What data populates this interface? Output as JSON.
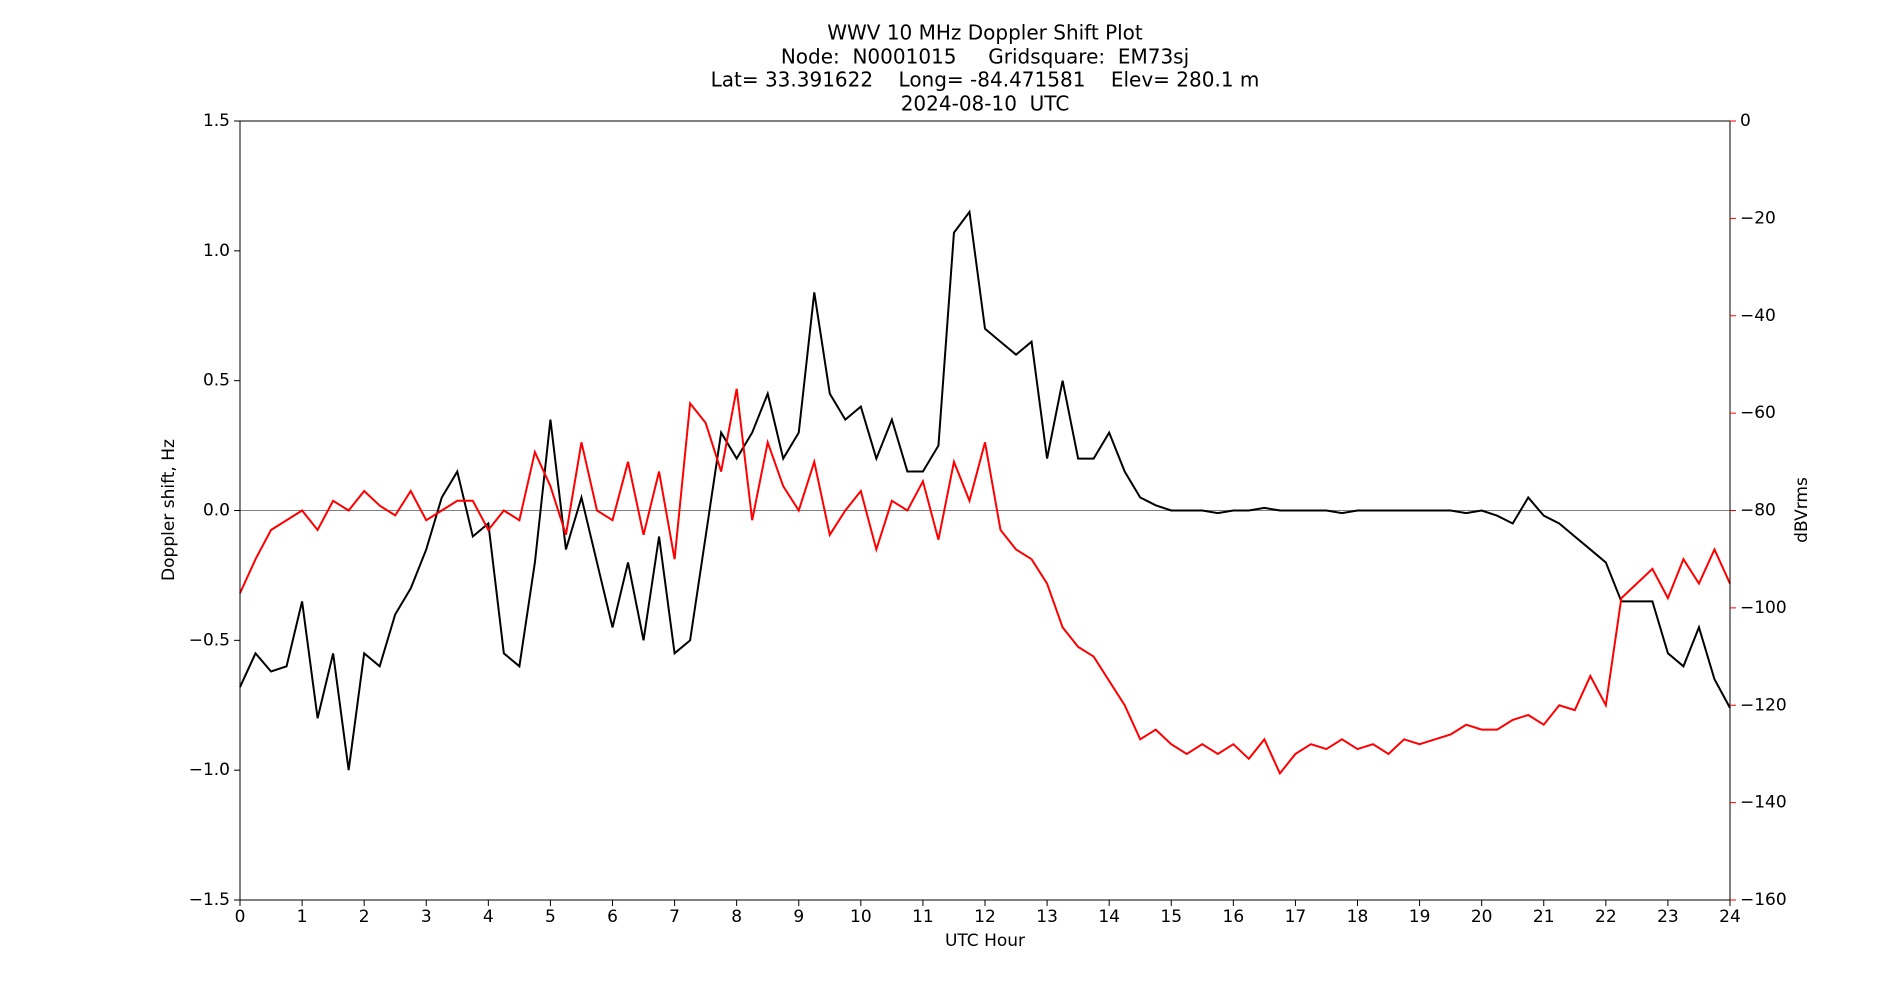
{
  "chart_data": {
    "type": "line",
    "title": "WWV 10 MHz Doppler Shift Plot",
    "subtitle": [
      "Node:  N0001015     Gridsquare:  EM73sj",
      "Lat= 33.391622    Long= -84.471581    Elev= 280.1 m",
      "2024-08-10  UTC"
    ],
    "xlabel": "UTC Hour",
    "ylabel": "Doppler shift, Hz",
    "y2label": "dBVrms",
    "zero_line": true,
    "x": [
      0,
      0.25,
      0.5,
      0.75,
      1,
      1.25,
      1.5,
      1.75,
      2,
      2.25,
      2.5,
      2.75,
      3,
      3.25,
      3.5,
      3.75,
      4,
      4.25,
      4.5,
      4.75,
      5,
      5.25,
      5.5,
      5.75,
      6,
      6.25,
      6.5,
      6.75,
      7,
      7.25,
      7.5,
      7.75,
      8,
      8.25,
      8.5,
      8.75,
      9,
      9.25,
      9.5,
      9.75,
      10,
      10.25,
      10.5,
      10.75,
      11,
      11.25,
      11.5,
      11.75,
      12,
      12.25,
      12.5,
      12.75,
      13,
      13.25,
      13.5,
      13.75,
      14,
      14.25,
      14.5,
      14.75,
      15,
      15.25,
      15.5,
      15.75,
      16,
      16.25,
      16.5,
      16.75,
      17,
      17.25,
      17.5,
      17.75,
      18,
      18.25,
      18.5,
      18.75,
      19,
      19.25,
      19.5,
      19.75,
      20,
      20.25,
      20.5,
      20.75,
      21,
      21.25,
      21.5,
      21.75,
      22,
      22.25,
      22.5,
      22.75,
      23,
      23.25,
      23.5,
      23.75,
      24
    ],
    "series": [
      {
        "name": "Doppler shift",
        "color": "#000000",
        "axis": "y",
        "values": [
          -0.68,
          -0.55,
          -0.62,
          -0.6,
          -0.35,
          -0.8,
          -0.55,
          -1.0,
          -0.55,
          -0.6,
          -0.4,
          -0.3,
          -0.15,
          0.05,
          0.15,
          -0.1,
          -0.05,
          -0.55,
          -0.6,
          -0.2,
          0.35,
          -0.15,
          0.05,
          -0.2,
          -0.45,
          -0.2,
          -0.5,
          -0.1,
          -0.55,
          -0.5,
          -0.1,
          0.3,
          0.2,
          0.3,
          0.45,
          0.2,
          0.3,
          0.84,
          0.45,
          0.35,
          0.4,
          0.2,
          0.35,
          0.15,
          0.15,
          0.25,
          1.07,
          1.15,
          0.7,
          0.65,
          0.6,
          0.65,
          0.2,
          0.5,
          0.2,
          0.2,
          0.3,
          0.15,
          0.05,
          0.02,
          0,
          0,
          0,
          -0.01,
          0,
          0,
          0.01,
          0,
          0,
          0,
          0,
          -0.01,
          0,
          0,
          0,
          0,
          0,
          0,
          0,
          -0.01,
          0,
          -0.02,
          -0.05,
          0.05,
          -0.02,
          -0.05,
          -0.1,
          -0.15,
          -0.2,
          -0.35,
          -0.35,
          -0.35,
          -0.55,
          -0.6,
          -0.45,
          -0.65,
          -0.76
        ]
      },
      {
        "name": "dBVrms",
        "color": "#ff0000",
        "axis": "y2",
        "values": [
          -97,
          -90,
          -84,
          -82,
          -80,
          -84,
          -78,
          -80,
          -76,
          -79,
          -81,
          -76,
          -82,
          -80,
          -78,
          -78,
          -84,
          -80,
          -82,
          -68,
          -75,
          -85,
          -66,
          -80,
          -82,
          -70,
          -85,
          -72,
          -90,
          -58,
          -62,
          -72,
          -55,
          -82,
          -66,
          -75,
          -80,
          -70,
          -85,
          -80,
          -76,
          -88,
          -78,
          -80,
          -74,
          -86,
          -70,
          -78,
          -66,
          -84,
          -88,
          -90,
          -95,
          -104,
          -108,
          -110,
          -115,
          -120,
          -127,
          -125,
          -128,
          -130,
          -128,
          -130,
          -128,
          -131,
          -127,
          -134,
          -130,
          -128,
          -129,
          -127,
          -129,
          -128,
          -130,
          -127,
          -128,
          -127,
          -126,
          -124,
          -125,
          -125,
          -123,
          -122,
          -124,
          -120,
          -121,
          -114,
          -120,
          -98,
          -95,
          -92,
          -98,
          -90,
          -95,
          -88,
          -95
        ]
      }
    ],
    "xlim": [
      0,
      24
    ],
    "xticks": [
      0,
      1,
      2,
      3,
      4,
      5,
      6,
      7,
      8,
      9,
      10,
      11,
      12,
      13,
      14,
      15,
      16,
      17,
      18,
      19,
      20,
      21,
      22,
      23,
      24
    ],
    "ylim": [
      -1.5,
      1.5
    ],
    "yticks": [
      {
        "value": -1.5,
        "label": "−1.5"
      },
      {
        "value": -1.0,
        "label": "−1.0"
      },
      {
        "value": -0.5,
        "label": "−0.5"
      },
      {
        "value": 0,
        "label": "0.0"
      },
      {
        "value": 0.5,
        "label": "0.5"
      },
      {
        "value": 1.0,
        "label": "1.0"
      },
      {
        "value": 1.5,
        "label": "1.5"
      }
    ],
    "y2lim": [
      -160,
      0
    ],
    "y2ticks": [
      0,
      {
        "value": -20,
        "label": "−20"
      },
      {
        "value": -40,
        "label": "−40"
      },
      {
        "value": -60,
        "label": "−60"
      },
      {
        "value": -80,
        "label": "−80"
      },
      {
        "value": -100,
        "label": "−100"
      },
      {
        "value": -120,
        "label": "−120"
      },
      {
        "value": -140,
        "label": "−140"
      },
      {
        "value": -160,
        "label": "−160"
      }
    ]
  }
}
